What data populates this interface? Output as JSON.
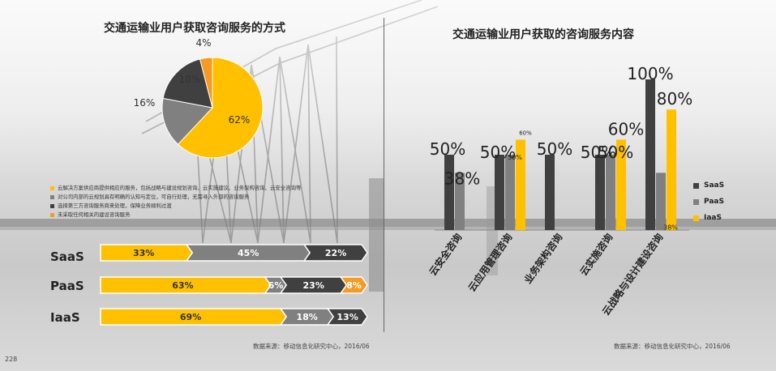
{
  "page": {
    "page_number": "228"
  },
  "left": {
    "title": "交通运输业用户获取咨询服务的方式",
    "pie": {
      "slices": [
        {
          "label": "62%",
          "value": 62,
          "color": "#FFC000"
        },
        {
          "label": "16%",
          "value": 16,
          "color": "#808080"
        },
        {
          "label": "18%",
          "value": 18,
          "color": "#404040"
        },
        {
          "label": "4%",
          "value": 4,
          "color": "#F59A23"
        }
      ]
    },
    "legend": [
      {
        "text": "云解决方案供应商提供相应的服务，包括战略与建设规划咨询、云实施建议、业务架构咨询、云安全咨询等",
        "color": "#FFC000"
      },
      {
        "text": "对公司内部的云规划具有明确的认知与定位，可自行处理，无需寻入外部的咨询服务",
        "color": "#808080"
      },
      {
        "text": "选择第三方咨询服务商来处理，保障业务顺利过渡",
        "color": "#404040"
      },
      {
        "text": "未采取任何相关的建设咨询服务",
        "color": "#F59A23"
      }
    ],
    "stacked": {
      "rows": [
        {
          "name": "SaaS",
          "segments": [
            {
              "label": "33%",
              "value": 33,
              "color": "#FFC000"
            },
            {
              "label": "45%",
              "value": 45,
              "color": "#808080"
            },
            {
              "label": "22%",
              "value": 22,
              "color": "#404040"
            }
          ]
        },
        {
          "name": "PaaS",
          "segments": [
            {
              "label": "63%",
              "value": 63,
              "color": "#FFC000"
            },
            {
              "label": "6%",
              "value": 6,
              "color": "#808080"
            },
            {
              "label": "23%",
              "value": 23,
              "color": "#404040"
            },
            {
              "label": "8%",
              "value": 8,
              "color": "#F59A23"
            }
          ]
        },
        {
          "name": "IaaS",
          "segments": [
            {
              "label": "69%",
              "value": 69,
              "color": "#FFC000"
            },
            {
              "label": "18%",
              "value": 18,
              "color": "#808080"
            },
            {
              "label": "13%",
              "value": 13,
              "color": "#404040"
            }
          ]
        }
      ]
    },
    "source": "数据来源：移动信息化研究中心，2016/06"
  },
  "right": {
    "title": "交通运输业用户获取的咨询服务内容",
    "source": "数据来源：移动信息化研究中心，2016/06"
  },
  "chart_data": {
    "type": "bar",
    "categories": [
      "云安全咨询",
      "云应用管理咨询",
      "业务架构咨询",
      "云实施咨询",
      "云战略与设计建设咨询"
    ],
    "series": [
      {
        "name": "SaaS",
        "color": "#404040",
        "values": [
          50,
          50,
          50,
          50,
          100
        ],
        "labels": [
          "50%",
          "50%",
          "50%",
          "50%",
          "100%"
        ]
      },
      {
        "name": "PaaS",
        "color": "#808080",
        "values": [
          38,
          50,
          null,
          50,
          38
        ],
        "labels": [
          "38%",
          "50%",
          "",
          "50%",
          "38%"
        ]
      },
      {
        "name": "IaaS",
        "color": "#FFC000",
        "values": [
          null,
          60,
          null,
          60,
          80
        ],
        "labels": [
          "",
          "60%",
          "",
          "60%",
          "80%"
        ]
      }
    ],
    "ylim": [
      0,
      100
    ]
  }
}
